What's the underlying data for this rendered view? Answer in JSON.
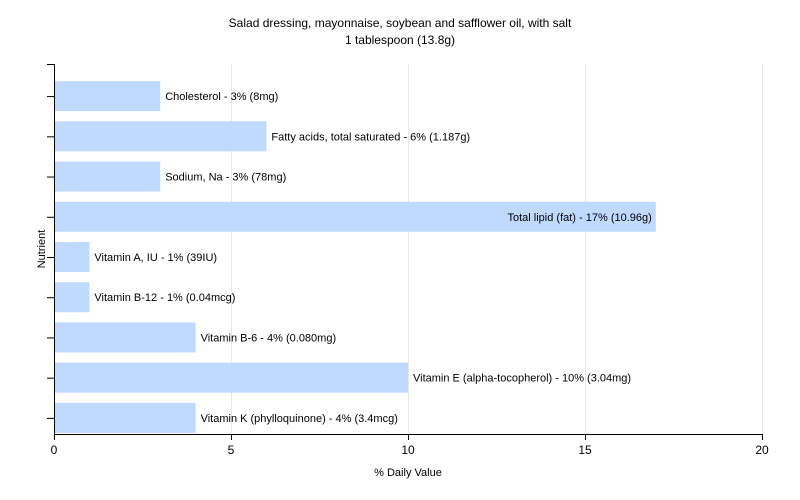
{
  "chart_data": {
    "type": "bar",
    "orientation": "horizontal",
    "title": "Salad dressing, mayonnaise, soybean and safflower oil, with salt",
    "subtitle": "1 tablespoon (13.8g)",
    "xlabel": "% Daily Value",
    "ylabel": "Nutrient",
    "xlim": [
      0,
      20
    ],
    "xticks": [
      0,
      5,
      10,
      15,
      20
    ],
    "grid": true,
    "bar_color": "#bfd9ff",
    "categories": [
      "Cholesterol",
      "Fatty acids, total saturated",
      "Sodium, Na",
      "Total lipid (fat)",
      "Vitamin A, IU",
      "Vitamin B-12",
      "Vitamin B-6",
      "Vitamin E (alpha-tocopherol)",
      "Vitamin K (phylloquinone)"
    ],
    "values": [
      3,
      6,
      3,
      17,
      1,
      1,
      4,
      10,
      4
    ],
    "labels": [
      "Cholesterol - 3% (8mg)",
      "Fatty acids, total saturated - 6% (1.187g)",
      "Sodium, Na - 3% (78mg)",
      "Total lipid (fat) - 17% (10.96g)",
      "Vitamin A, IU - 1% (39IU)",
      "Vitamin B-12 - 1% (0.04mcg)",
      "Vitamin B-6 - 4% (0.080mg)",
      "Vitamin E (alpha-tocopherol) - 10% (3.04mg)",
      "Vitamin K (phylloquinone) - 4% (3.4mcg)"
    ]
  }
}
